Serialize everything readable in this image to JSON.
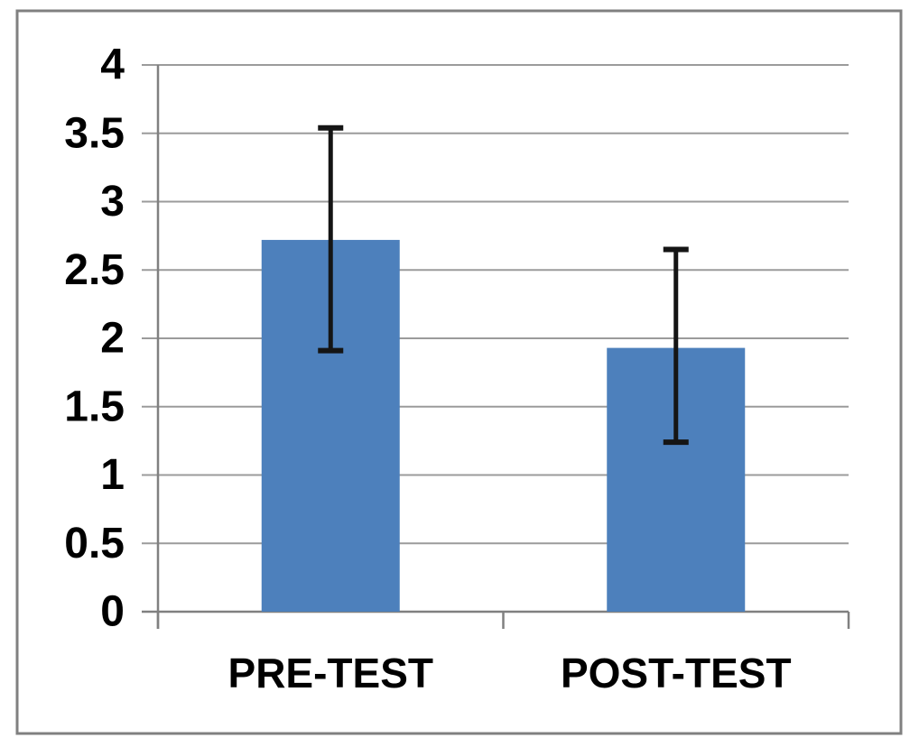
{
  "chart_data": {
    "type": "bar",
    "title": "",
    "categories": [
      "PRE-TEST",
      "POST-TEST"
    ],
    "values": [
      2.72,
      1.93
    ],
    "error_bars": {
      "upper": [
        3.54,
        2.65
      ],
      "lower": [
        1.91,
        1.24
      ]
    },
    "y_tick_values": [
      0,
      0.5,
      1,
      1.5,
      2,
      2.5,
      3,
      3.5,
      4
    ],
    "y_tick_labels": [
      "0",
      "0.5",
      "1",
      "1.5",
      "2",
      "2.5",
      "3",
      "3.5",
      "4"
    ],
    "ylim": [
      0,
      4
    ],
    "xlabel": "",
    "ylabel": "",
    "grid": true,
    "legend": false,
    "colors": {
      "bar": "#4d80bc",
      "error_bar": "#151515",
      "gridline": "#9b9b9b",
      "axis": "#808080",
      "frame_border": "#808080",
      "background": "#ffffff",
      "text": "#000000"
    }
  }
}
